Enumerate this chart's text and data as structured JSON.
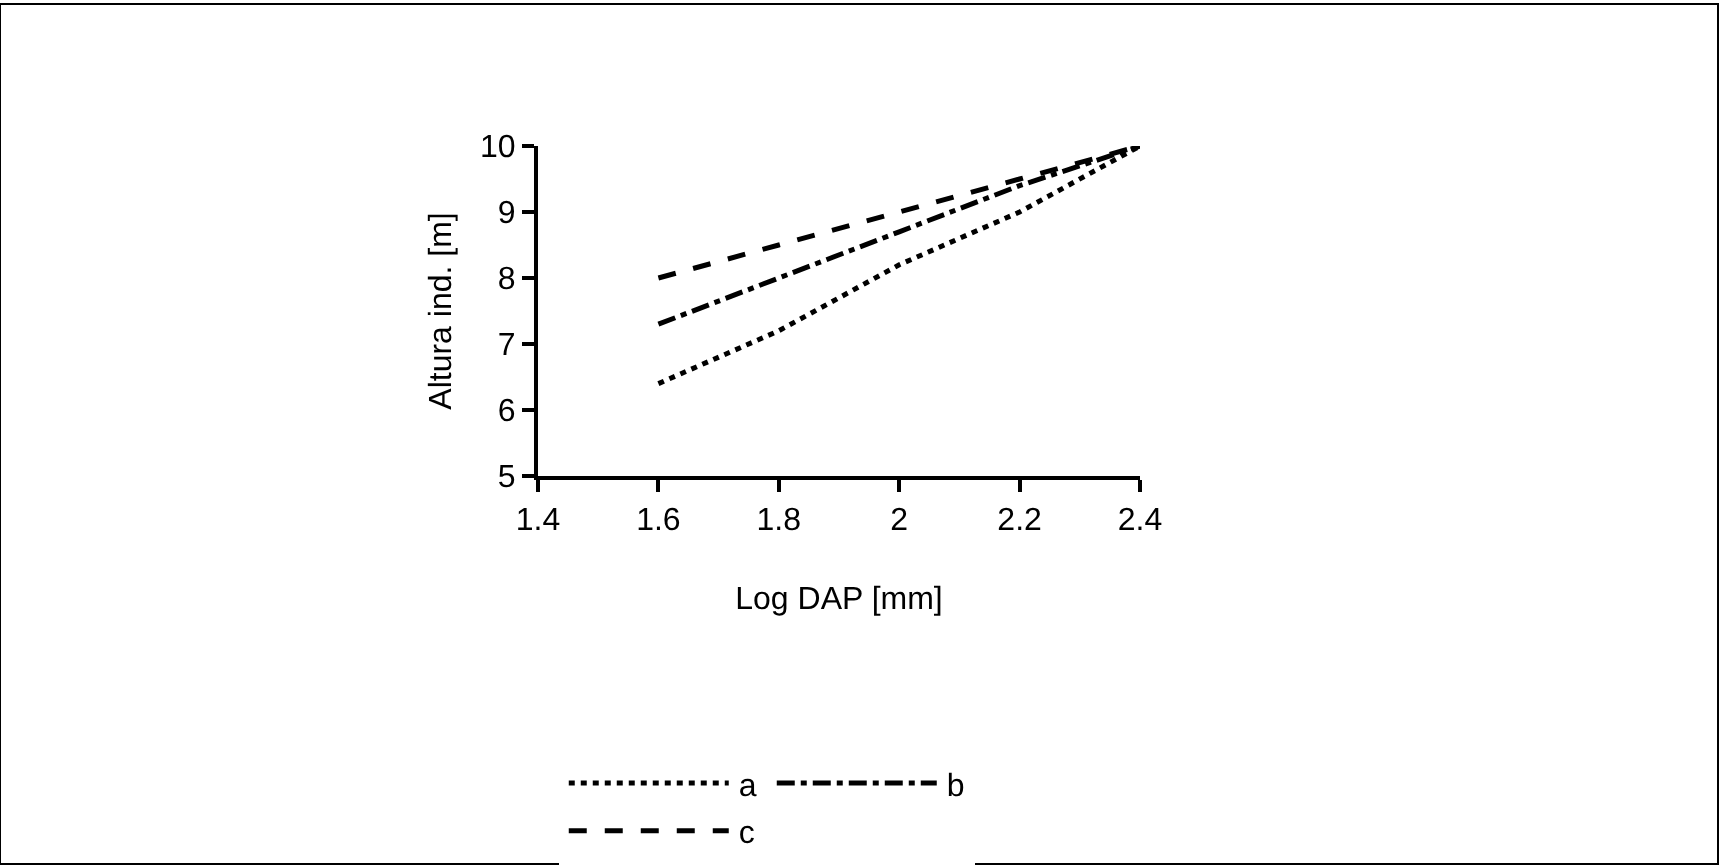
{
  "chart_data": {
    "type": "line",
    "xlabel": "Log DAP [mm]",
    "ylabel": "Altura ind. [m]",
    "x": [
      1.6,
      1.8,
      2.0,
      2.2,
      2.4
    ],
    "series": [
      {
        "name": "a",
        "color": "#000000",
        "line_style": "dotted",
        "values": [
          6.4,
          7.2,
          8.2,
          9.0,
          10
        ]
      },
      {
        "name": "b",
        "color": "#000000",
        "line_style": "dashdot",
        "values": [
          7.3,
          8.0,
          8.7,
          9.4,
          10
        ]
      },
      {
        "name": "c",
        "color": "#000000",
        "line_style": "dashed",
        "values": [
          8.0,
          8.5,
          9.0,
          9.5,
          10
        ]
      }
    ],
    "xlim": [
      1.4,
      2.4
    ],
    "xticks": [
      1.4,
      1.6,
      1.8,
      2,
      2.2,
      2.4
    ],
    "ylim": [
      5,
      10
    ],
    "yticks": [
      5,
      6,
      7,
      8,
      9,
      10
    ],
    "grid": false,
    "legend": "bottom",
    "marker": "none"
  }
}
